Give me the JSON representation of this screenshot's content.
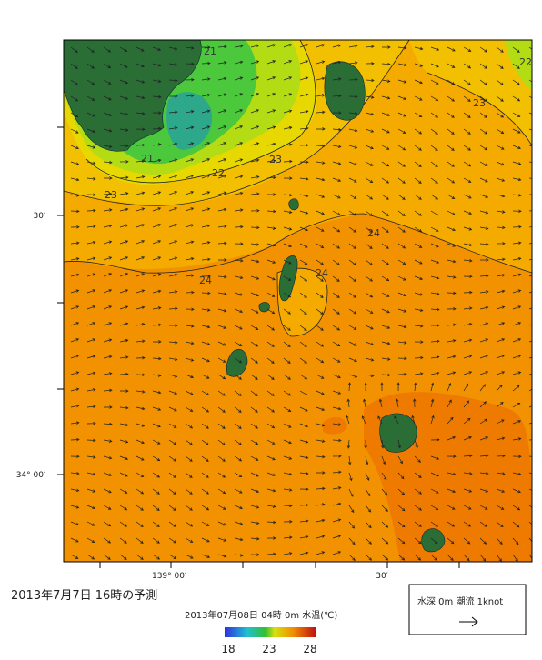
{
  "map": {
    "title": "2013年7月7日 16時の予測",
    "subtitle": "2013年07月08日 04時 0m 水温(℃)",
    "lat_labels": [
      "30′",
      "34° 00′"
    ],
    "lon_labels": [
      "139° 00′",
      "30′"
    ],
    "contour_labels": [
      "21",
      "21",
      "22",
      "23",
      "23",
      "23",
      "22",
      "24",
      "24",
      "24"
    ],
    "colorbar_labels": [
      "18",
      "23",
      "28"
    ],
    "legend": "水深 0m 潮流 1knot"
  }
}
